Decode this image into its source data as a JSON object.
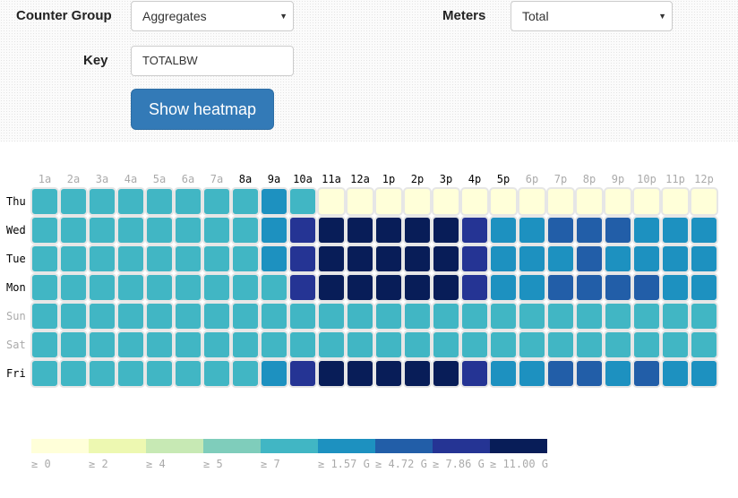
{
  "form": {
    "counter_group_label": "Counter Group",
    "counter_group_value": "Aggregates",
    "meters_label": "Meters",
    "meters_value": "Total",
    "key_label": "Key",
    "key_value": "TOTALBW",
    "button_label": "Show heatmap"
  },
  "colors": {
    "palette": [
      "#ffffd9",
      "#edf8b1",
      "#c7e9b4",
      "#7fcdbb",
      "#41b6c4",
      "#1d91c0",
      "#225ea8",
      "#253494",
      "#081d58"
    ],
    "cell_stroke": "#e6e6e6",
    "label_active": "#000000",
    "label_inactive": "#aaaaaa"
  },
  "chart_data": {
    "type": "heatmap",
    "hours": [
      "1a",
      "2a",
      "3a",
      "4a",
      "5a",
      "6a",
      "7a",
      "8a",
      "9a",
      "10a",
      "11a",
      "12a",
      "1p",
      "2p",
      "3p",
      "4p",
      "5p",
      "6p",
      "7p",
      "8p",
      "9p",
      "10p",
      "11p",
      "12p"
    ],
    "hours_active": [
      false,
      false,
      false,
      false,
      false,
      false,
      false,
      true,
      true,
      true,
      true,
      true,
      true,
      true,
      true,
      true,
      true,
      false,
      false,
      false,
      false,
      false,
      false,
      false
    ],
    "days": [
      "Thu",
      "Wed",
      "Tue",
      "Mon",
      "Sun",
      "Sat",
      "Fri"
    ],
    "days_active": [
      true,
      true,
      true,
      true,
      false,
      false,
      true
    ],
    "levels": [
      [
        4,
        4,
        4,
        4,
        4,
        4,
        4,
        4,
        5,
        4,
        0,
        0,
        0,
        0,
        0,
        0,
        0,
        0,
        0,
        0,
        0,
        0,
        0,
        0
      ],
      [
        4,
        4,
        4,
        4,
        4,
        4,
        4,
        4,
        5,
        7,
        8,
        8,
        8,
        8,
        8,
        7,
        5,
        5,
        6,
        6,
        6,
        5,
        5,
        5
      ],
      [
        4,
        4,
        4,
        4,
        4,
        4,
        4,
        4,
        5,
        7,
        8,
        8,
        8,
        8,
        8,
        7,
        5,
        5,
        5,
        6,
        5,
        5,
        5,
        5
      ],
      [
        4,
        4,
        4,
        4,
        4,
        4,
        4,
        4,
        4,
        7,
        8,
        8,
        8,
        8,
        8,
        7,
        5,
        5,
        6,
        6,
        6,
        6,
        5,
        5
      ],
      [
        4,
        4,
        4,
        4,
        4,
        4,
        4,
        4,
        4,
        4,
        4,
        4,
        4,
        4,
        4,
        4,
        4,
        4,
        4,
        4,
        4,
        4,
        4,
        4
      ],
      [
        4,
        4,
        4,
        4,
        4,
        4,
        4,
        4,
        4,
        4,
        4,
        4,
        4,
        4,
        4,
        4,
        4,
        4,
        4,
        4,
        4,
        4,
        4,
        4
      ],
      [
        4,
        4,
        4,
        4,
        4,
        4,
        4,
        4,
        5,
        7,
        8,
        8,
        8,
        8,
        8,
        7,
        5,
        5,
        6,
        6,
        5,
        6,
        5,
        5
      ]
    ],
    "legend": [
      "≥ 0",
      "≥ 2",
      "≥ 4",
      "≥ 5",
      "≥ 7",
      "≥ 1.57 G",
      "≥ 4.72 G",
      "≥ 7.86 G",
      "≥ 11.00 G"
    ]
  }
}
